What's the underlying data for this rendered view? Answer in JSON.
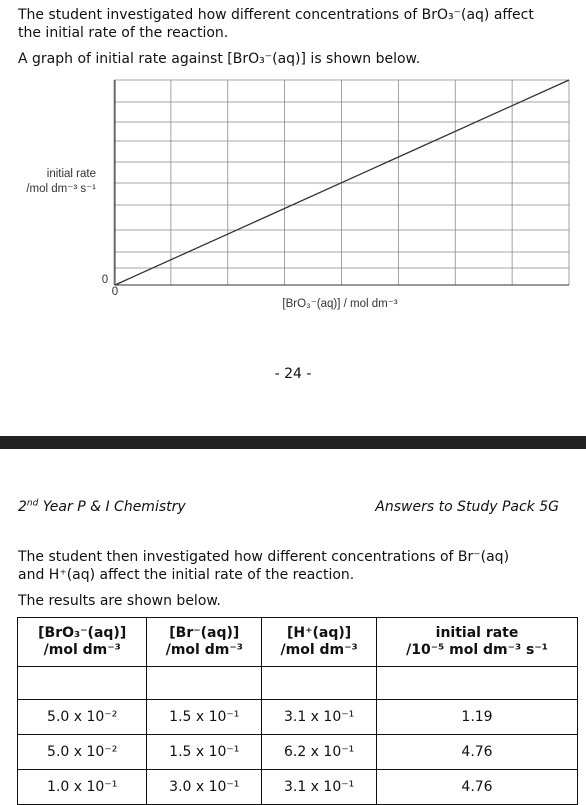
{
  "intro": {
    "line1": "The student investigated how different concentrations of BrO₃⁻(aq) affect",
    "line2": "the initial rate of the reaction.",
    "line3": "A graph of initial rate against [BrO₃⁻(aq)] is shown below."
  },
  "chart_data": {
    "type": "line",
    "ylabel_line1": "initial rate",
    "ylabel_line2": "/mol dm⁻³ s⁻¹",
    "xlabel": "[BrO₃⁻(aq)] / mol dm⁻³",
    "x_origin_label": "0",
    "y_origin_label": "0",
    "grid": true,
    "series": [
      {
        "x": [
          0,
          8
        ],
        "y": [
          0,
          8
        ]
      }
    ]
  },
  "page_number": "- 24 -",
  "header": {
    "left_prefix": "2",
    "left_sup": "nd",
    "left_suffix": " Year P & I Chemistry",
    "right": "Answers to Study Pack 5G"
  },
  "body": {
    "line1": "The student then investigated how different concentrations of Br⁻(aq)",
    "line2": "and H⁺(aq) affect the initial rate of the reaction.",
    "line3": "The results are shown below."
  },
  "table": {
    "headers": [
      {
        "l1": "[BrO₃⁻(aq)]",
        "l2": "/mol dm⁻³"
      },
      {
        "l1": "[Br⁻(aq)]",
        "l2": "/mol dm⁻³"
      },
      {
        "l1": "[H⁺(aq)]",
        "l2": "/mol dm⁻³"
      },
      {
        "l1": "initial rate",
        "l2": "/10⁻⁵ mol dm⁻³ s⁻¹"
      }
    ],
    "rows": [
      [
        "5.0 x 10⁻²",
        "1.5 x 10⁻¹",
        "3.1 x 10⁻¹",
        "1.19"
      ],
      [
        "5.0 x 10⁻²",
        "1.5 x 10⁻¹",
        "6.2 x 10⁻¹",
        "4.76"
      ],
      [
        "1.0 x 10⁻¹",
        "3.0 x 10⁻¹",
        "3.1 x 10⁻¹",
        "4.76"
      ]
    ]
  }
}
